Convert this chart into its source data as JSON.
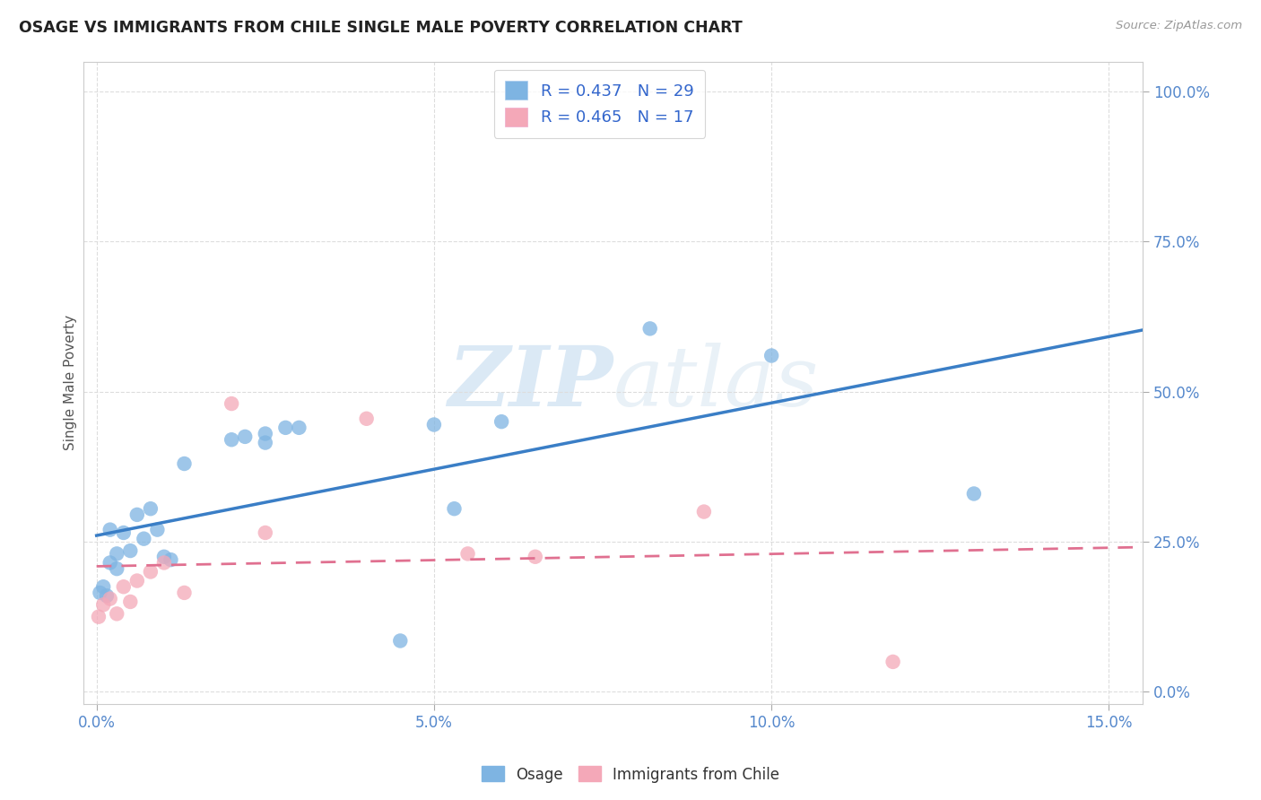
{
  "title": "OSAGE VS IMMIGRANTS FROM CHILE SINGLE MALE POVERTY CORRELATION CHART",
  "source": "Source: ZipAtlas.com",
  "xlabel_ticks": [
    "0.0%",
    "5.0%",
    "10.0%",
    "15.0%"
  ],
  "xlabel_tick_vals": [
    0.0,
    0.05,
    0.1,
    0.15
  ],
  "ylabel": "Single Male Poverty",
  "ylabel_ticks": [
    "0.0%",
    "25.0%",
    "50.0%",
    "75.0%",
    "100.0%"
  ],
  "ylabel_tick_vals": [
    0.0,
    0.25,
    0.5,
    0.75,
    1.0
  ],
  "xlim": [
    -0.002,
    0.155
  ],
  "ylim": [
    -0.02,
    1.05
  ],
  "osage_color": "#7EB4E2",
  "chile_color": "#F4A8B8",
  "osage_line_color": "#3A7EC6",
  "chile_line_color": "#E07090",
  "watermark_zip": "ZIP",
  "watermark_atlas": "atlas",
  "legend_r_osage": "R = 0.437",
  "legend_n_osage": "N = 29",
  "legend_r_chile": "R = 0.465",
  "legend_n_chile": "N = 17",
  "osage_x": [
    0.0005,
    0.001,
    0.0015,
    0.002,
    0.002,
    0.003,
    0.003,
    0.004,
    0.005,
    0.006,
    0.007,
    0.008,
    0.009,
    0.01,
    0.011,
    0.013,
    0.02,
    0.022,
    0.025,
    0.025,
    0.028,
    0.03,
    0.045,
    0.05,
    0.053,
    0.06,
    0.082,
    0.1,
    0.13
  ],
  "osage_y": [
    0.165,
    0.175,
    0.16,
    0.215,
    0.27,
    0.205,
    0.23,
    0.265,
    0.235,
    0.295,
    0.255,
    0.305,
    0.27,
    0.225,
    0.22,
    0.38,
    0.42,
    0.425,
    0.415,
    0.43,
    0.44,
    0.44,
    0.085,
    0.445,
    0.305,
    0.45,
    0.605,
    0.56,
    0.33
  ],
  "chile_x": [
    0.0003,
    0.001,
    0.002,
    0.003,
    0.004,
    0.005,
    0.006,
    0.008,
    0.01,
    0.013,
    0.02,
    0.025,
    0.04,
    0.055,
    0.065,
    0.09,
    0.118
  ],
  "chile_y": [
    0.125,
    0.145,
    0.155,
    0.13,
    0.175,
    0.15,
    0.185,
    0.2,
    0.215,
    0.165,
    0.48,
    0.265,
    0.455,
    0.23,
    0.225,
    0.3,
    0.05
  ],
  "background_color": "#FFFFFF",
  "grid_color": "#CCCCCC",
  "axis_color": "#CCCCCC"
}
